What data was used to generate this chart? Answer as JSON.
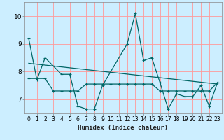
{
  "title": "",
  "xlabel": "Humidex (Indice chaleur)",
  "ylabel": "",
  "bg_color": "#cceeff",
  "grid_color": "#ff9999",
  "line_color": "#006666",
  "xlim": [
    -0.5,
    23.5
  ],
  "ylim": [
    6.5,
    10.5
  ],
  "yticks": [
    7,
    8,
    9,
    10
  ],
  "xticks": [
    0,
    1,
    2,
    3,
    4,
    5,
    6,
    7,
    8,
    9,
    10,
    11,
    12,
    13,
    14,
    15,
    16,
    17,
    18,
    19,
    20,
    21,
    22,
    23
  ],
  "series1_x": [
    0,
    1,
    2,
    4,
    5,
    6,
    7,
    8,
    9,
    12,
    13,
    14,
    15,
    16,
    17,
    18,
    19,
    20,
    21,
    22,
    23
  ],
  "series1_y": [
    9.2,
    7.7,
    8.5,
    7.9,
    7.9,
    6.75,
    6.65,
    6.65,
    7.5,
    9.0,
    10.1,
    8.4,
    8.5,
    7.6,
    6.65,
    7.2,
    7.1,
    7.1,
    7.5,
    6.75,
    7.6
  ],
  "series2_x": [
    0,
    1,
    2,
    3,
    4,
    5,
    6,
    7,
    8,
    9,
    10,
    11,
    12,
    13,
    14,
    15,
    16,
    17,
    18,
    19,
    20,
    21,
    22,
    23
  ],
  "series2_y": [
    7.75,
    7.75,
    7.75,
    7.3,
    7.3,
    7.3,
    7.3,
    7.55,
    7.55,
    7.55,
    7.55,
    7.55,
    7.55,
    7.55,
    7.55,
    7.55,
    7.3,
    7.3,
    7.3,
    7.3,
    7.3,
    7.3,
    7.3,
    7.6
  ],
  "trend_x": [
    0,
    23
  ],
  "trend_y": [
    8.3,
    7.55
  ]
}
